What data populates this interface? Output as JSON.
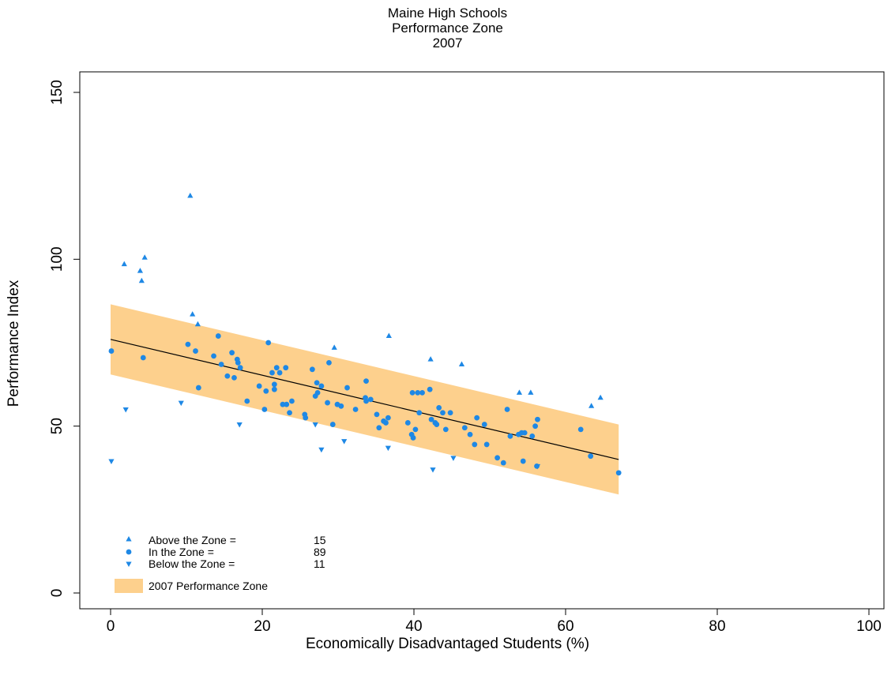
{
  "chart_data": {
    "type": "scatter",
    "title": [
      "Maine High Schools",
      "Performance Zone",
      "2007"
    ],
    "xlabel": "Economically Disadvantaged Students (%)",
    "ylabel": "Performance Index",
    "xlim": [
      0,
      100
    ],
    "ylim": [
      0,
      150
    ],
    "xticks": [
      "0",
      "20",
      "40",
      "60",
      "80",
      "100"
    ],
    "yticks": [
      "0",
      "50",
      "100",
      "150"
    ],
    "colors": {
      "points": "#1E88E5",
      "zone": "#FDD08D",
      "line": "#000000"
    },
    "trend_line": {
      "x": [
        0,
        67
      ],
      "y": [
        76,
        40
      ]
    },
    "zone_band": {
      "x": [
        0,
        67
      ],
      "upper": [
        86.5,
        50.5
      ],
      "lower": [
        65.5,
        29.5
      ]
    },
    "legend": {
      "above": {
        "label": "Above the Zone =",
        "count": "15"
      },
      "in": {
        "label": "In the Zone =",
        "count": "89"
      },
      "below": {
        "label": "Below the Zone =",
        "count": "11"
      },
      "zone": {
        "label": "2007 Performance Zone"
      }
    },
    "series": [
      {
        "key": "above",
        "marker": "triangle-up",
        "points": [
          [
            10.5,
            119
          ],
          [
            1.8,
            98.5
          ],
          [
            4.5,
            100.5
          ],
          [
            3.9,
            96.5
          ],
          [
            4.1,
            93.5
          ],
          [
            10.8,
            83.5
          ],
          [
            11.5,
            80.5
          ],
          [
            29.5,
            73.5
          ],
          [
            36.7,
            77
          ],
          [
            42.2,
            70
          ],
          [
            46.3,
            68.5
          ],
          [
            53.9,
            60
          ],
          [
            55.4,
            60
          ],
          [
            63.4,
            56
          ],
          [
            64.6,
            58.5
          ]
        ]
      },
      {
        "key": "in",
        "marker": "circle",
        "points": [
          [
            0.1,
            72.5
          ],
          [
            4.3,
            70.5
          ],
          [
            10.2,
            74.5
          ],
          [
            11.2,
            72.5
          ],
          [
            11.6,
            61.5
          ],
          [
            13.6,
            71
          ],
          [
            14.2,
            77
          ],
          [
            14.6,
            68.5
          ],
          [
            15.4,
            65
          ],
          [
            16.0,
            72
          ],
          [
            16.3,
            64.5
          ],
          [
            16.7,
            70
          ],
          [
            16.8,
            69
          ],
          [
            17.1,
            67.5
          ],
          [
            18.0,
            57.5
          ],
          [
            19.6,
            62
          ],
          [
            20.3,
            55
          ],
          [
            20.5,
            60.5
          ],
          [
            20.8,
            75
          ],
          [
            21.3,
            66
          ],
          [
            21.6,
            62.5
          ],
          [
            21.6,
            61
          ],
          [
            21.9,
            67.5
          ],
          [
            22.3,
            66
          ],
          [
            22.7,
            56.5
          ],
          [
            23.1,
            67.5
          ],
          [
            23.2,
            56.5
          ],
          [
            23.6,
            54
          ],
          [
            23.9,
            57.5
          ],
          [
            25.6,
            53.5
          ],
          [
            25.7,
            52.5
          ],
          [
            26.6,
            67
          ],
          [
            27.0,
            59
          ],
          [
            27.2,
            63
          ],
          [
            27.3,
            60
          ],
          [
            27.8,
            62
          ],
          [
            28.6,
            57
          ],
          [
            28.8,
            69
          ],
          [
            29.3,
            50.5
          ],
          [
            29.9,
            56.5
          ],
          [
            30.4,
            56
          ],
          [
            31.2,
            61.5
          ],
          [
            32.3,
            55
          ],
          [
            33.6,
            58.5
          ],
          [
            33.7,
            63.5
          ],
          [
            33.7,
            57.5
          ],
          [
            34.3,
            58
          ],
          [
            35.1,
            53.5
          ],
          [
            35.4,
            49.5
          ],
          [
            36.0,
            51.5
          ],
          [
            36.3,
            51
          ],
          [
            36.6,
            52.5
          ],
          [
            39.2,
            51
          ],
          [
            39.7,
            47.5
          ],
          [
            39.8,
            60
          ],
          [
            39.9,
            46.5
          ],
          [
            40.2,
            49
          ],
          [
            40.5,
            60
          ],
          [
            40.7,
            54
          ],
          [
            41.1,
            60
          ],
          [
            42.1,
            61
          ],
          [
            42.3,
            52
          ],
          [
            42.8,
            51
          ],
          [
            43.0,
            50.5
          ],
          [
            43.3,
            55.5
          ],
          [
            43.8,
            54
          ],
          [
            44.2,
            49
          ],
          [
            44.8,
            54
          ],
          [
            46.7,
            49.5
          ],
          [
            47.4,
            47.5
          ],
          [
            48.0,
            44.5
          ],
          [
            48.3,
            52.5
          ],
          [
            49.3,
            50.5
          ],
          [
            49.6,
            44.5
          ],
          [
            51.0,
            40.5
          ],
          [
            51.8,
            39
          ],
          [
            52.3,
            55
          ],
          [
            52.7,
            47
          ],
          [
            53.8,
            47.5
          ],
          [
            54.2,
            48
          ],
          [
            54.4,
            39.5
          ],
          [
            54.6,
            48
          ],
          [
            55.6,
            47
          ],
          [
            56.0,
            50
          ],
          [
            56.2,
            38
          ],
          [
            56.3,
            52
          ],
          [
            62.0,
            49
          ],
          [
            63.3,
            41
          ],
          [
            67.0,
            36
          ]
        ]
      },
      {
        "key": "below",
        "marker": "triangle-down",
        "points": [
          [
            0.1,
            39.5
          ],
          [
            2.0,
            55
          ],
          [
            9.3,
            57
          ],
          [
            17.0,
            50.5
          ],
          [
            27.0,
            50.5
          ],
          [
            27.8,
            43
          ],
          [
            30.8,
            45.5
          ],
          [
            36.6,
            43.5
          ],
          [
            42.5,
            37
          ],
          [
            45.2,
            40.5
          ],
          [
            56.3,
            38
          ]
        ]
      }
    ]
  }
}
